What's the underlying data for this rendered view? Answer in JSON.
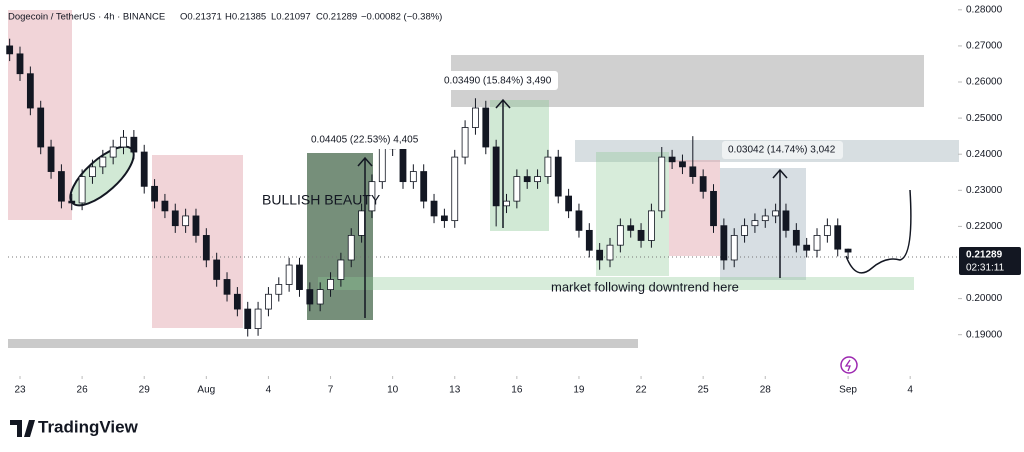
{
  "chart_data": {
    "type": "candlestick",
    "title": "Dogecoin / TetherUS · 4h · BINANCE",
    "ohlc_legend": [
      "O0.21371",
      "H0.21385",
      "L0.21097",
      "C0.21289",
      "−0.00082 (−0.38%)"
    ],
    "x": [
      -0.5,
      0,
      0.5,
      1,
      1.5,
      2,
      2.5,
      3,
      3.5,
      4,
      4.5,
      5,
      5.5,
      6,
      6.5,
      7,
      7.5,
      8,
      8.5,
      9,
      9.5,
      10,
      10.5,
      11,
      11.5,
      12,
      12.5,
      13,
      13.5,
      14,
      14.5,
      15,
      15.5,
      16,
      16.5,
      17,
      17.5,
      18,
      18.5,
      19,
      19.5,
      20,
      20.5,
      21,
      21.5,
      22,
      22.5,
      23,
      23.5,
      24,
      24.5,
      25,
      25.5,
      26,
      26.5,
      27,
      27.5,
      28,
      28.5,
      29,
      29.5,
      30,
      30.5,
      31,
      31.5,
      32,
      32.5,
      33,
      33.5,
      34,
      34.5,
      35,
      35.5,
      36,
      36.5,
      37,
      37.5,
      38,
      38.5,
      39,
      39.5,
      40
    ],
    "open": [
      0.27,
      0.2678,
      0.2623,
      0.2528,
      0.242,
      0.2352,
      0.227,
      0.2265,
      0.2338,
      0.2365,
      0.2392,
      0.242,
      0.2447,
      0.2406,
      0.2311,
      0.227,
      0.2243,
      0.2202,
      0.2229,
      0.2175,
      0.2107,
      0.2053,
      0.2012,
      0.1971,
      0.1917,
      0.1971,
      0.2012,
      0.2039,
      0.2093,
      0.2025,
      0.1985,
      0.2025,
      0.2053,
      0.2107,
      0.2175,
      0.2243,
      0.2324,
      0.242,
      0.2415,
      0.2324,
      0.2352,
      0.227,
      0.2229,
      0.2216,
      0.2392,
      0.2474,
      0.2528,
      0.242,
      0.2257,
      0.227,
      0.2338,
      0.2324,
      0.2338,
      0.2392,
      0.2284,
      0.2243,
      0.2189,
      0.2134,
      0.2107,
      0.2148,
      0.2202,
      0.2189,
      0.2161,
      0.2243,
      0.2392,
      0.2379,
      0.2365,
      0.2338,
      0.2297,
      0.2202,
      0.2107,
      0.2175,
      0.2202,
      0.2216,
      0.2229,
      0.2243,
      0.2189,
      0.2148,
      0.2134,
      0.2175,
      0.2202,
      0.21371
    ],
    "high": [
      0.272,
      0.2698,
      0.2643,
      0.2548,
      0.244,
      0.2372,
      0.229,
      0.2358,
      0.2385,
      0.2412,
      0.244,
      0.2467,
      0.2467,
      0.2426,
      0.2331,
      0.229,
      0.2263,
      0.2249,
      0.2249,
      0.2195,
      0.2127,
      0.2073,
      0.2032,
      0.1991,
      0.1991,
      0.2032,
      0.2059,
      0.2113,
      0.2113,
      0.2045,
      0.2045,
      0.2073,
      0.2127,
      0.2195,
      0.2263,
      0.2344,
      0.244,
      0.244,
      0.2435,
      0.2372,
      0.2372,
      0.229,
      0.2249,
      0.2412,
      0.2494,
      0.2555,
      0.2548,
      0.244,
      0.229,
      0.2358,
      0.2358,
      0.2358,
      0.2412,
      0.2412,
      0.2304,
      0.2263,
      0.2209,
      0.2154,
      0.2168,
      0.2222,
      0.2222,
      0.2209,
      0.2263,
      0.242,
      0.2412,
      0.2399,
      0.245,
      0.2358,
      0.2317,
      0.2222,
      0.2195,
      0.2222,
      0.2236,
      0.2249,
      0.2263,
      0.2263,
      0.2209,
      0.2168,
      0.2195,
      0.2222,
      0.2222,
      0.21385
    ],
    "low": [
      0.2658,
      0.2603,
      0.2508,
      0.24,
      0.2332,
      0.225,
      0.2245,
      0.2245,
      0.2318,
      0.2345,
      0.2372,
      0.24,
      0.2386,
      0.2291,
      0.225,
      0.2223,
      0.2182,
      0.2182,
      0.2155,
      0.2087,
      0.2033,
      0.1992,
      0.1951,
      0.1895,
      0.1897,
      0.1951,
      0.1992,
      0.2019,
      0.2005,
      0.1965,
      0.1965,
      0.2005,
      0.2033,
      0.2087,
      0.2155,
      0.2223,
      0.2304,
      0.2395,
      0.2304,
      0.2304,
      0.225,
      0.2209,
      0.2196,
      0.2196,
      0.2372,
      0.2454,
      0.24,
      0.22,
      0.2237,
      0.225,
      0.2304,
      0.2304,
      0.2318,
      0.2264,
      0.2223,
      0.2169,
      0.2114,
      0.208,
      0.2087,
      0.2128,
      0.2169,
      0.2141,
      0.2141,
      0.2223,
      0.2359,
      0.2345,
      0.2318,
      0.2277,
      0.2182,
      0.208,
      0.2087,
      0.2155,
      0.2182,
      0.2196,
      0.2209,
      0.2169,
      0.2128,
      0.2114,
      0.2114,
      0.2155,
      0.2117,
      0.21097
    ],
    "close": [
      0.2678,
      0.2623,
      0.2528,
      0.242,
      0.2352,
      0.227,
      0.2265,
      0.2338,
      0.2365,
      0.2392,
      0.242,
      0.2447,
      0.2406,
      0.2311,
      0.227,
      0.2243,
      0.2202,
      0.2229,
      0.2175,
      0.2107,
      0.2053,
      0.2012,
      0.1971,
      0.1917,
      0.1971,
      0.2012,
      0.2039,
      0.2093,
      0.2025,
      0.1985,
      0.2025,
      0.2053,
      0.2107,
      0.2175,
      0.2243,
      0.2324,
      0.242,
      0.2415,
      0.2324,
      0.2352,
      0.227,
      0.2229,
      0.2216,
      0.2392,
      0.2474,
      0.2528,
      0.242,
      0.2257,
      0.227,
      0.2338,
      0.2324,
      0.2338,
      0.2392,
      0.2284,
      0.2243,
      0.2189,
      0.2134,
      0.2107,
      0.2148,
      0.2202,
      0.2189,
      0.2161,
      0.2243,
      0.2392,
      0.2379,
      0.2365,
      0.2338,
      0.2297,
      0.2202,
      0.2107,
      0.2175,
      0.2202,
      0.2216,
      0.2229,
      0.2243,
      0.2189,
      0.2148,
      0.2134,
      0.2175,
      0.2202,
      0.2137,
      0.21289
    ],
    "colors": {
      "up": "#ffffff",
      "down": "#131722",
      "border": "#131722"
    },
    "xlim": [
      -0.58,
      45.31
    ],
    "xticks": [
      {
        "value": 0,
        "label": "23"
      },
      {
        "value": 3,
        "label": "26"
      },
      {
        "value": 6,
        "label": "29"
      },
      {
        "value": 9,
        "label": "Aug"
      },
      {
        "value": 12,
        "label": "4"
      },
      {
        "value": 15,
        "label": "7"
      },
      {
        "value": 18,
        "label": "10"
      },
      {
        "value": 21,
        "label": "13"
      },
      {
        "value": 24,
        "label": "16"
      },
      {
        "value": 27,
        "label": "19"
      },
      {
        "value": 30,
        "label": "22"
      },
      {
        "value": 33,
        "label": "25"
      },
      {
        "value": 36,
        "label": "28"
      },
      {
        "value": 40,
        "label": "Sep"
      },
      {
        "value": 43,
        "label": "4"
      }
    ],
    "ylim": [
      0.18022,
      0.28272
    ],
    "yticks": [
      {
        "value": 0.28,
        "label": "0.28000"
      },
      {
        "value": 0.27,
        "label": "0.27000"
      },
      {
        "value": 0.26,
        "label": "0.26000"
      },
      {
        "value": 0.25,
        "label": "0.25000"
      },
      {
        "value": 0.24,
        "label": "0.24000"
      },
      {
        "value": 0.23,
        "label": "0.23000"
      },
      {
        "value": 0.22,
        "label": "0.22000"
      },
      {
        "value": 0.2,
        "label": "0.20000"
      },
      {
        "value": 0.19,
        "label": "0.19000"
      }
    ],
    "grid": false,
    "countdown": "02:31:11",
    "annotations": [
      "0.04405 (22.53%) 4,405",
      "0.03490 (15.84%) 3,490",
      "0.03042 (14.74%) 3,042",
      "BULLISH BEAUTY",
      "market following downtrend here"
    ]
  },
  "brand": "TradingView"
}
